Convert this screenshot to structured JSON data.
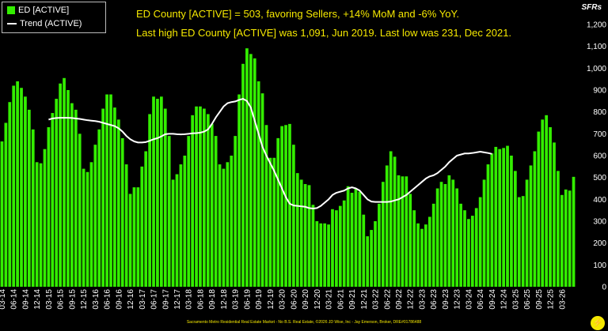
{
  "legend": {
    "bar_label": "ED [ACTIVE]",
    "line_label": "Trend (ACTIVE)"
  },
  "headline": {
    "line1": "ED County [ACTIVE] = 503, favoring Sellers, +14% MoM and -6% YoY.",
    "line2": "Last high ED County [ACTIVE] was 1,091, Jun 2019. Last low was 231, Dec 2021."
  },
  "unit_label": "SFRs",
  "footer_text": "Sacramento Metro Residential Real Estate Market - No B.S. Real Estate, ©2026 JD Wise, Inc - Jay Emerson, Broker, DRE#01786488",
  "colors": {
    "background": "#000000",
    "bar": "#33ee00",
    "trend": "#ffffff",
    "headline": "#f5e800"
  },
  "chart_data": {
    "type": "bar",
    "title": "",
    "xlabel": "",
    "ylabel": "SFRs",
    "ylim": [
      0,
      1200
    ],
    "yticks": [
      0,
      100,
      200,
      300,
      400,
      500,
      600,
      700,
      800,
      900,
      1000,
      1100,
      1200
    ],
    "ytick_labels": [
      "0",
      "100",
      "200",
      "300",
      "400",
      "500",
      "600",
      "700",
      "800",
      "900",
      "1,000",
      "1,100",
      "1,200"
    ],
    "y_axis_side": "right",
    "grid": false,
    "legend_position": "top-left",
    "x_tick_labels": [
      "03-14",
      "06-14",
      "09-14",
      "12-14",
      "03-15",
      "06-15",
      "09-15",
      "12-15",
      "03-16",
      "06-16",
      "09-16",
      "12-16",
      "03-17",
      "06-17",
      "09-17",
      "12-17",
      "03-18",
      "06-18",
      "09-18",
      "12-18",
      "03-19",
      "06-19",
      "09-19",
      "12-19",
      "03-20",
      "06-20",
      "09-20",
      "12-20",
      "03-21",
      "06-21",
      "09-21",
      "12-21",
      "03-22",
      "06-22",
      "09-22",
      "12-22",
      "03-23",
      "06-23",
      "09-23",
      "12-23",
      "03-24",
      "06-24",
      "09-24",
      "12-24",
      "03-25",
      "06-25",
      "09-25",
      "12-25",
      "03-26"
    ],
    "series": [
      {
        "name": "ED [ACTIVE]",
        "kind": "bar",
        "values": [
          665,
          750,
          845,
          920,
          940,
          910,
          870,
          810,
          720,
          570,
          565,
          630,
          730,
          795,
          860,
          930,
          955,
          900,
          840,
          810,
          700,
          540,
          525,
          570,
          650,
          720,
          815,
          880,
          880,
          820,
          765,
          680,
          560,
          425,
          455,
          455,
          550,
          620,
          790,
          870,
          860,
          870,
          815,
          690,
          490,
          515,
          560,
          600,
          690,
          785,
          825,
          825,
          815,
          790,
          745,
          690,
          560,
          540,
          570,
          600,
          690,
          880,
          1020,
          1091,
          1065,
          1045,
          940,
          885,
          740,
          590,
          590,
          680,
          735,
          740,
          745,
          650,
          520,
          490,
          470,
          465,
          375,
          300,
          290,
          290,
          285,
          355,
          350,
          370,
          395,
          460,
          430,
          450,
          435,
          330,
          231,
          260,
          300,
          380,
          480,
          555,
          620,
          595,
          510,
          505,
          505,
          425,
          350,
          290,
          265,
          285,
          320,
          380,
          450,
          480,
          470,
          510,
          490,
          450,
          380,
          350,
          310,
          325,
          360,
          410,
          490,
          560,
          610,
          640,
          630,
          635,
          645,
          600,
          530,
          410,
          415,
          490,
          555,
          620,
          710,
          765,
          785,
          730,
          660,
          530,
          420,
          445,
          440,
          503
        ]
      },
      {
        "name": "Trend (ACTIVE)",
        "kind": "line",
        "start_index": 12,
        "values": [
          765,
          770,
          772,
          773,
          773,
          773,
          772,
          770,
          768,
          765,
          762,
          760,
          758,
          755,
          750,
          745,
          740,
          735,
          725,
          710,
          690,
          675,
          665,
          660,
          660,
          662,
          668,
          675,
          680,
          688,
          698,
          700,
          700,
          698,
          697,
          698,
          700,
          702,
          703,
          705,
          710,
          720,
          745,
          775,
          800,
          825,
          840,
          845,
          848,
          855,
          860,
          850,
          820,
          760,
          700,
          640,
          600,
          565,
          530,
          490,
          450,
          410,
          380,
          372,
          370,
          368,
          366,
          360,
          358,
          360,
          370,
          385,
          400,
          420,
          430,
          435,
          440,
          450,
          455,
          450,
          440,
          420,
          400,
          390,
          388,
          388,
          388,
          388,
          390,
          395,
          400,
          410,
          420,
          435,
          450,
          465,
          480,
          495,
          505,
          510,
          520,
          535,
          550,
          570,
          585,
          600,
          605,
          610,
          610,
          612,
          615,
          618,
          615,
          612,
          608
        ]
      }
    ]
  }
}
